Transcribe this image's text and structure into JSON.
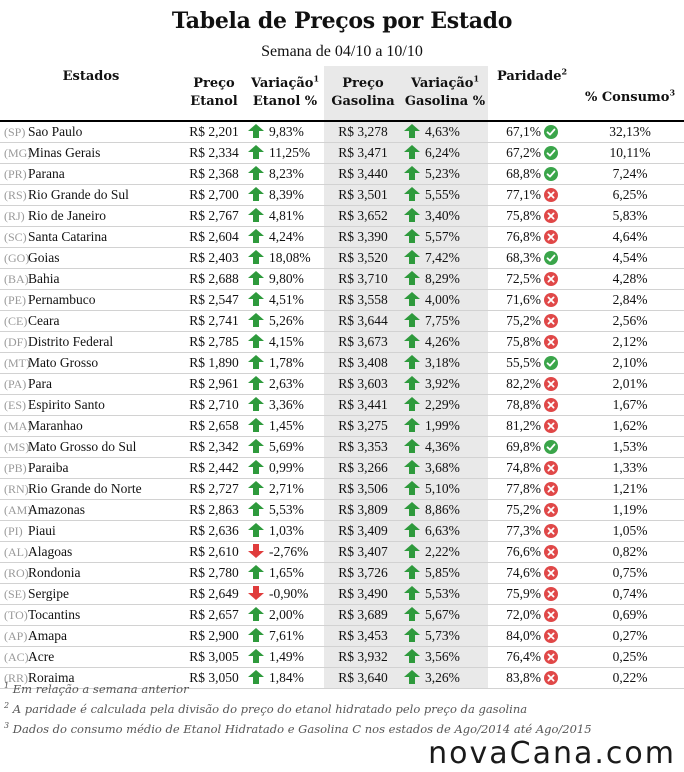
{
  "title": "Tabela de Preços por Estado",
  "subtitle": "Semana de 04/10 a 10/10",
  "headers": {
    "estados": "Estados",
    "preco_etanol_1": "Preço",
    "preco_etanol_2": "Etanol",
    "variacao_etanol_1": "Variação",
    "variacao_etanol_2": "Etanol %",
    "preco_gasolina_1": "Preço",
    "preco_gasolina_2": "Gasolina",
    "variacao_gasolina_1": "Variação",
    "variacao_gasolina_2": "Gasolina %",
    "paridade": "Paridade",
    "consumo": "% Consumo",
    "sup1": "1",
    "sup2": "2",
    "sup3": "3"
  },
  "colors": {
    "up": "#2e9a3c",
    "down": "#e03c3c",
    "ok": "#3aa54a",
    "bad": "#e04848",
    "alt_bg": "#e9e9e9"
  },
  "rows": [
    {
      "code": "(SP)",
      "name": "Sao Paulo",
      "etanol": "R$ 2,201",
      "var_etanol": "9,83%",
      "dir_etanol": "up",
      "gasolina": "R$ 3,278",
      "var_gasolina": "4,63%",
      "dir_gasolina": "up",
      "paridade": "67,1%",
      "status": "ok",
      "consumo": "32,13%"
    },
    {
      "code": "(MG)",
      "name": "Minas Gerais",
      "etanol": "R$ 2,334",
      "var_etanol": "11,25%",
      "dir_etanol": "up",
      "gasolina": "R$ 3,471",
      "var_gasolina": "6,24%",
      "dir_gasolina": "up",
      "paridade": "67,2%",
      "status": "ok",
      "consumo": "10,11%"
    },
    {
      "code": "(PR)",
      "name": "Parana",
      "etanol": "R$ 2,368",
      "var_etanol": "8,23%",
      "dir_etanol": "up",
      "gasolina": "R$ 3,440",
      "var_gasolina": "5,23%",
      "dir_gasolina": "up",
      "paridade": "68,8%",
      "status": "ok",
      "consumo": "7,24%"
    },
    {
      "code": "(RS)",
      "name": "Rio Grande do Sul",
      "etanol": "R$ 2,700",
      "var_etanol": "8,39%",
      "dir_etanol": "up",
      "gasolina": "R$ 3,501",
      "var_gasolina": "5,55%",
      "dir_gasolina": "up",
      "paridade": "77,1%",
      "status": "bad",
      "consumo": "6,25%"
    },
    {
      "code": "(RJ)",
      "name": "Rio de Janeiro",
      "etanol": "R$ 2,767",
      "var_etanol": "4,81%",
      "dir_etanol": "up",
      "gasolina": "R$ 3,652",
      "var_gasolina": "3,40%",
      "dir_gasolina": "up",
      "paridade": "75,8%",
      "status": "bad",
      "consumo": "5,83%"
    },
    {
      "code": "(SC)",
      "name": "Santa Catarina",
      "etanol": "R$ 2,604",
      "var_etanol": "4,24%",
      "dir_etanol": "up",
      "gasolina": "R$ 3,390",
      "var_gasolina": "5,57%",
      "dir_gasolina": "up",
      "paridade": "76,8%",
      "status": "bad",
      "consumo": "4,64%"
    },
    {
      "code": "(GO)",
      "name": "Goias",
      "etanol": "R$ 2,403",
      "var_etanol": "18,08%",
      "dir_etanol": "up",
      "gasolina": "R$ 3,520",
      "var_gasolina": "7,42%",
      "dir_gasolina": "up",
      "paridade": "68,3%",
      "status": "ok",
      "consumo": "4,54%"
    },
    {
      "code": "(BA)",
      "name": "Bahia",
      "etanol": "R$ 2,688",
      "var_etanol": "9,80%",
      "dir_etanol": "up",
      "gasolina": "R$ 3,710",
      "var_gasolina": "8,29%",
      "dir_gasolina": "up",
      "paridade": "72,5%",
      "status": "bad",
      "consumo": "4,28%"
    },
    {
      "code": "(PE)",
      "name": "Pernambuco",
      "etanol": "R$ 2,547",
      "var_etanol": "4,51%",
      "dir_etanol": "up",
      "gasolina": "R$ 3,558",
      "var_gasolina": "4,00%",
      "dir_gasolina": "up",
      "paridade": "71,6%",
      "status": "bad",
      "consumo": "2,84%"
    },
    {
      "code": "(CE)",
      "name": "Ceara",
      "etanol": "R$ 2,741",
      "var_etanol": "5,26%",
      "dir_etanol": "up",
      "gasolina": "R$ 3,644",
      "var_gasolina": "7,75%",
      "dir_gasolina": "up",
      "paridade": "75,2%",
      "status": "bad",
      "consumo": "2,56%"
    },
    {
      "code": "(DF)",
      "name": "Distrito Federal",
      "etanol": "R$ 2,785",
      "var_etanol": "4,15%",
      "dir_etanol": "up",
      "gasolina": "R$ 3,673",
      "var_gasolina": "4,26%",
      "dir_gasolina": "up",
      "paridade": "75,8%",
      "status": "bad",
      "consumo": "2,12%"
    },
    {
      "code": "(MT)",
      "name": "Mato Grosso",
      "etanol": "R$ 1,890",
      "var_etanol": "1,78%",
      "dir_etanol": "up",
      "gasolina": "R$ 3,408",
      "var_gasolina": "3,18%",
      "dir_gasolina": "up",
      "paridade": "55,5%",
      "status": "ok",
      "consumo": "2,10%"
    },
    {
      "code": "(PA)",
      "name": "Para",
      "etanol": "R$ 2,961",
      "var_etanol": "2,63%",
      "dir_etanol": "up",
      "gasolina": "R$ 3,603",
      "var_gasolina": "3,92%",
      "dir_gasolina": "up",
      "paridade": "82,2%",
      "status": "bad",
      "consumo": "2,01%"
    },
    {
      "code": "(ES)",
      "name": "Espirito Santo",
      "etanol": "R$ 2,710",
      "var_etanol": "3,36%",
      "dir_etanol": "up",
      "gasolina": "R$ 3,441",
      "var_gasolina": "2,29%",
      "dir_gasolina": "up",
      "paridade": "78,8%",
      "status": "bad",
      "consumo": "1,67%"
    },
    {
      "code": "(MA)",
      "name": "Maranhao",
      "etanol": "R$ 2,658",
      "var_etanol": "1,45%",
      "dir_etanol": "up",
      "gasolina": "R$ 3,275",
      "var_gasolina": "1,99%",
      "dir_gasolina": "up",
      "paridade": "81,2%",
      "status": "bad",
      "consumo": "1,62%"
    },
    {
      "code": "(MS)",
      "name": "Mato Grosso do Sul",
      "etanol": "R$ 2,342",
      "var_etanol": "5,69%",
      "dir_etanol": "up",
      "gasolina": "R$ 3,353",
      "var_gasolina": "4,36%",
      "dir_gasolina": "up",
      "paridade": "69,8%",
      "status": "ok",
      "consumo": "1,53%"
    },
    {
      "code": "(PB)",
      "name": "Paraiba",
      "etanol": "R$ 2,442",
      "var_etanol": "0,99%",
      "dir_etanol": "up",
      "gasolina": "R$ 3,266",
      "var_gasolina": "3,68%",
      "dir_gasolina": "up",
      "paridade": "74,8%",
      "status": "bad",
      "consumo": "1,33%"
    },
    {
      "code": "(RN)",
      "name": "Rio Grande do Norte",
      "etanol": "R$ 2,727",
      "var_etanol": "2,71%",
      "dir_etanol": "up",
      "gasolina": "R$ 3,506",
      "var_gasolina": "5,10%",
      "dir_gasolina": "up",
      "paridade": "77,8%",
      "status": "bad",
      "consumo": "1,21%"
    },
    {
      "code": "(AM)",
      "name": "Amazonas",
      "etanol": "R$ 2,863",
      "var_etanol": "5,53%",
      "dir_etanol": "up",
      "gasolina": "R$ 3,809",
      "var_gasolina": "8,86%",
      "dir_gasolina": "up",
      "paridade": "75,2%",
      "status": "bad",
      "consumo": "1,19%"
    },
    {
      "code": "(PI)",
      "name": "Piaui",
      "etanol": "R$ 2,636",
      "var_etanol": "1,03%",
      "dir_etanol": "up",
      "gasolina": "R$ 3,409",
      "var_gasolina": "6,63%",
      "dir_gasolina": "up",
      "paridade": "77,3%",
      "status": "bad",
      "consumo": "1,05%"
    },
    {
      "code": "(AL)",
      "name": "Alagoas",
      "etanol": "R$ 2,610",
      "var_etanol": "-2,76%",
      "dir_etanol": "down",
      "gasolina": "R$ 3,407",
      "var_gasolina": "2,22%",
      "dir_gasolina": "up",
      "paridade": "76,6%",
      "status": "bad",
      "consumo": "0,82%"
    },
    {
      "code": "(RO)",
      "name": "Rondonia",
      "etanol": "R$ 2,780",
      "var_etanol": "1,65%",
      "dir_etanol": "up",
      "gasolina": "R$ 3,726",
      "var_gasolina": "5,85%",
      "dir_gasolina": "up",
      "paridade": "74,6%",
      "status": "bad",
      "consumo": "0,75%"
    },
    {
      "code": "(SE)",
      "name": "Sergipe",
      "etanol": "R$ 2,649",
      "var_etanol": "-0,90%",
      "dir_etanol": "down",
      "gasolina": "R$ 3,490",
      "var_gasolina": "5,53%",
      "dir_gasolina": "up",
      "paridade": "75,9%",
      "status": "bad",
      "consumo": "0,74%"
    },
    {
      "code": "(TO)",
      "name": "Tocantins",
      "etanol": "R$ 2,657",
      "var_etanol": "2,00%",
      "dir_etanol": "up",
      "gasolina": "R$ 3,689",
      "var_gasolina": "5,67%",
      "dir_gasolina": "up",
      "paridade": "72,0%",
      "status": "bad",
      "consumo": "0,69%"
    },
    {
      "code": "(AP)",
      "name": "Amapa",
      "etanol": "R$ 2,900",
      "var_etanol": "7,61%",
      "dir_etanol": "up",
      "gasolina": "R$ 3,453",
      "var_gasolina": "5,73%",
      "dir_gasolina": "up",
      "paridade": "84,0%",
      "status": "bad",
      "consumo": "0,27%"
    },
    {
      "code": "(AC)",
      "name": "Acre",
      "etanol": "R$ 3,005",
      "var_etanol": "1,49%",
      "dir_etanol": "up",
      "gasolina": "R$ 3,932",
      "var_gasolina": "3,56%",
      "dir_gasolina": "up",
      "paridade": "76,4%",
      "status": "bad",
      "consumo": "0,25%"
    },
    {
      "code": "(RR)",
      "name": "Roraima",
      "etanol": "R$ 3,050",
      "var_etanol": "1,84%",
      "dir_etanol": "up",
      "gasolina": "R$ 3,640",
      "var_gasolina": "3,26%",
      "dir_gasolina": "up",
      "paridade": "83,8%",
      "status": "bad",
      "consumo": "0,22%"
    }
  ],
  "footnotes": [
    {
      "mark": "1",
      "text": "Em relação a semana anterior"
    },
    {
      "mark": "2",
      "text": "A paridade é calculada pela divisão do preço do etanol hidratado pelo preço da gasolina"
    },
    {
      "mark": "3",
      "text": "Dados do consumo médio de Etanol Hidratado e Gasolina C nos estados de Ago/2014 até Ago/2015"
    }
  ],
  "logo": "novaCana.com"
}
